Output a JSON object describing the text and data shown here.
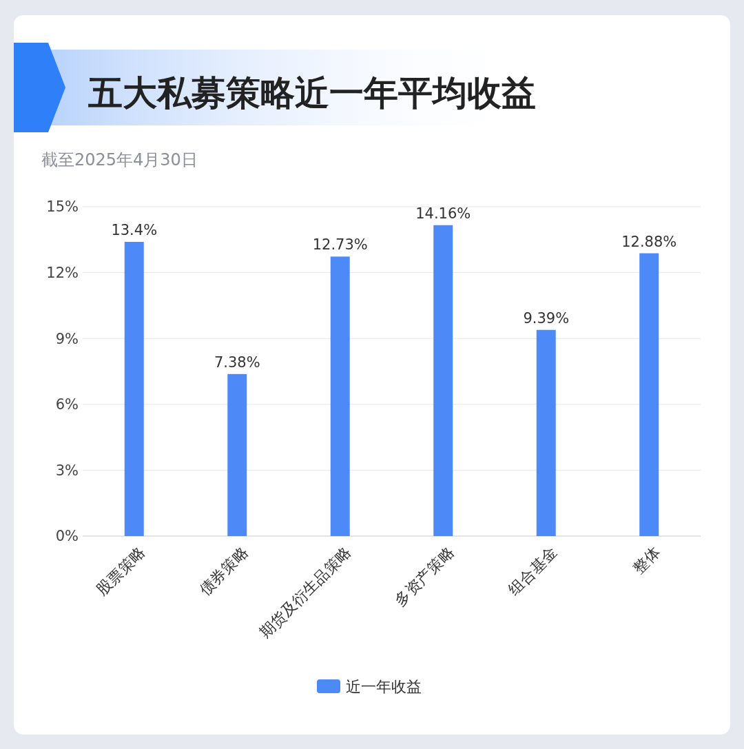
{
  "chart_data": {
    "type": "bar",
    "title": "五大私募策略近一年平均收益",
    "annotations": [
      "截至2025年4月30日"
    ],
    "categories": [
      "股票策略",
      "债券策略",
      "期货及衍生品策略",
      "多资产策略",
      "组合基金",
      "整体"
    ],
    "series": [
      {
        "name": "近一年收益",
        "color": "#4d8af7",
        "values": [
          13.4,
          7.38,
          12.73,
          14.16,
          9.39,
          12.88
        ],
        "value_labels": [
          "13.4%",
          "7.38%",
          "12.73%",
          "14.16%",
          "9.39%",
          "12.88%"
        ]
      }
    ],
    "ylim": [
      0,
      15
    ],
    "yticks": [
      {
        "value": 0,
        "label": "0%"
      },
      {
        "value": 3,
        "label": "3%"
      },
      {
        "value": 6,
        "label": "6%"
      },
      {
        "value": 9,
        "label": "9%"
      },
      {
        "value": 12,
        "label": "12%"
      },
      {
        "value": 15,
        "label": "15%"
      }
    ],
    "grid": "y",
    "legend": "bottom"
  }
}
